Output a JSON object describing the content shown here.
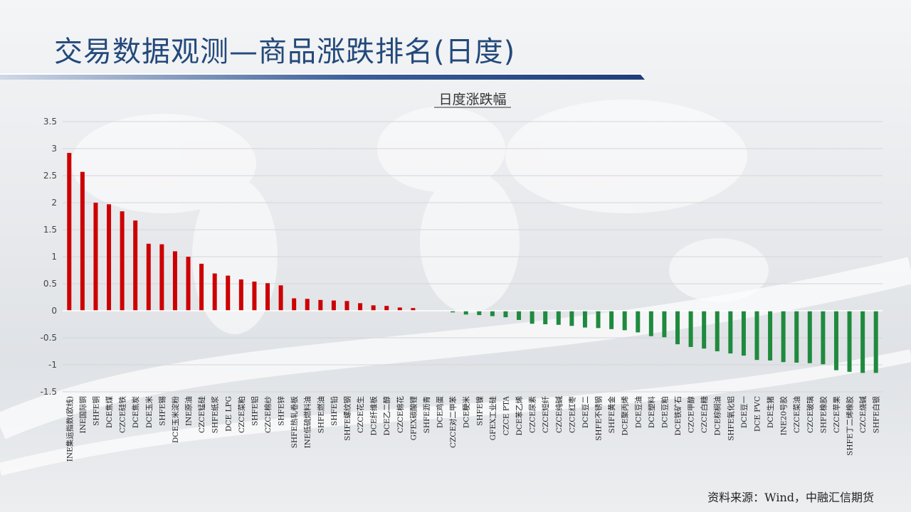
{
  "slide": {
    "title": "交易数据观测—商品涨跌排名(日度)",
    "source": "资料来源：Wind，中融汇信期货"
  },
  "colors": {
    "positive": "#cc0000",
    "negative": "#1f8a3e",
    "title": "#23497a",
    "stripe": "#1f3d7a"
  },
  "chart_data": {
    "type": "bar",
    "title": "日度涨跌幅",
    "xlabel": "",
    "ylabel": "",
    "ylim": [
      -1.5,
      3.5
    ],
    "yticks": [
      3.5,
      3,
      2.5,
      2,
      1.5,
      1,
      0.5,
      0,
      -0.5,
      -1,
      -1.5
    ],
    "grid": true,
    "legend": "none",
    "categories": [
      "INE集运指数(欧线)",
      "INE国际铜",
      "SHFE铜",
      "DCE焦煤",
      "CZCE硅铁",
      "DCE焦炭",
      "DCE玉米",
      "SHFE锡",
      "DCE玉米淀粉",
      "INE原油",
      "CZCE锰硅",
      "SHFE纸浆",
      "DCE LPG",
      "CZCE菜粕",
      "SHFE铝",
      "CZCE棉纱",
      "SHFE锌",
      "SHFE热轧卷板",
      "INE低硫燃料油",
      "SHFE燃油",
      "SHFE铅",
      "SHFE螺纹钢",
      "CZCE花生",
      "DCE纤维板",
      "DCE乙二醇",
      "CZCE棉花",
      "GFEX碳酸锂",
      "SHFE沥青",
      "DCE鸡蛋",
      "CZCE对二甲苯",
      "DCE粳米",
      "SHFE镍",
      "GFEX工业硅",
      "CZCE PTA",
      "DCE苯乙烯",
      "CZCE尿素",
      "CZCE短纤",
      "CZCE纯碱",
      "CZCE红枣",
      "DCE豆二",
      "SHFE不锈钢",
      "SHFE黄金",
      "DCE聚丙烯",
      "DCE豆油",
      "DCE塑料",
      "DCE豆粕",
      "DCE铁矿石",
      "CZCE甲醇",
      "CZCE白糖",
      "DCE棕榈油",
      "SHFE氧化铝",
      "DCE豆一",
      "DCE PVC",
      "DCE生猪",
      "INE20号胶",
      "CZCE菜油",
      "CZCE玻璃",
      "SHFE橡胶",
      "CZCE苹果",
      "SHFE丁二烯橡胶",
      "CZCE烧碱",
      "SHFE白银"
    ],
    "values": [
      2.92,
      2.57,
      2.0,
      1.97,
      1.84,
      1.67,
      1.24,
      1.23,
      1.1,
      1.0,
      0.87,
      0.69,
      0.65,
      0.58,
      0.54,
      0.51,
      0.47,
      0.23,
      0.22,
      0.2,
      0.19,
      0.18,
      0.14,
      0.1,
      0.09,
      0.06,
      0.05,
      0.0,
      0.0,
      -0.03,
      -0.07,
      -0.08,
      -0.1,
      -0.12,
      -0.17,
      -0.24,
      -0.25,
      -0.26,
      -0.28,
      -0.31,
      -0.32,
      -0.34,
      -0.36,
      -0.4,
      -0.47,
      -0.49,
      -0.62,
      -0.67,
      -0.7,
      -0.75,
      -0.79,
      -0.83,
      -0.91,
      -0.92,
      -0.95,
      -0.96,
      -0.97,
      -0.99,
      -1.1,
      -1.13,
      -1.15,
      -1.15
    ]
  }
}
